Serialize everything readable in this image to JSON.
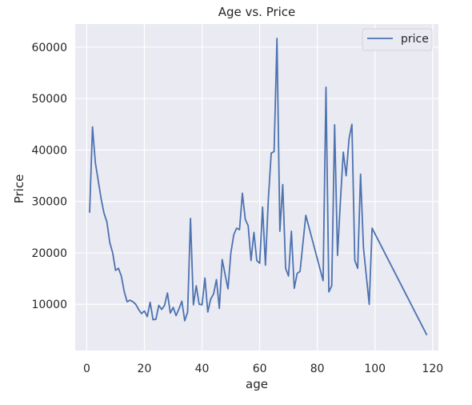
{
  "chart_data": {
    "type": "line",
    "title": "Age vs. Price",
    "xlabel": "age",
    "ylabel": "Price",
    "xlim": [
      -4,
      122
    ],
    "ylim": [
      1000,
      64500
    ],
    "xticks": [
      0,
      20,
      40,
      60,
      80,
      100,
      120
    ],
    "yticks": [
      10000,
      20000,
      30000,
      40000,
      50000,
      60000
    ],
    "grid": true,
    "legend": "top-right",
    "background": "#eaeaf2",
    "colors": {
      "series": "#4c72b0",
      "grid": "#ffffff"
    },
    "series": [
      {
        "name": "price",
        "x": [
          1,
          2,
          3,
          4,
          5,
          6,
          7,
          8,
          9,
          10,
          11,
          12,
          13,
          14,
          15,
          16,
          17,
          18,
          19,
          20,
          21,
          22,
          23,
          24,
          25,
          26,
          27,
          28,
          29,
          30,
          31,
          32,
          33,
          34,
          35,
          36,
          37,
          38,
          39,
          40,
          41,
          42,
          43,
          44,
          45,
          46,
          47,
          48,
          49,
          50,
          51,
          52,
          53,
          54,
          55,
          56,
          57,
          58,
          59,
          60,
          61,
          62,
          63,
          64,
          65,
          66,
          67,
          68,
          69,
          70,
          71,
          72,
          73,
          74,
          76,
          82,
          83,
          84,
          85,
          86,
          87,
          88,
          89,
          90,
          91,
          92,
          93,
          94,
          95,
          96,
          98,
          99,
          118
        ],
        "y": [
          27800,
          44500,
          37500,
          34000,
          30500,
          27700,
          26000,
          22000,
          20000,
          16600,
          17000,
          15500,
          12500,
          10500,
          10800,
          10500,
          10000,
          9000,
          8200,
          8700,
          7600,
          10400,
          7000,
          7100,
          9800,
          9000,
          9800,
          12200,
          8300,
          9400,
          7800,
          9100,
          10600,
          6800,
          8500,
          26700,
          9900,
          13600,
          10000,
          9900,
          15100,
          8500,
          11000,
          12000,
          14800,
          9200,
          18700,
          15800,
          13000,
          20000,
          23500,
          24800,
          24500,
          31600,
          26500,
          25300,
          18500,
          24000,
          18500,
          18000,
          28900,
          17600,
          30400,
          39400,
          39700,
          61700,
          24200,
          33300,
          17000,
          15500,
          24200,
          13100,
          16000,
          16400,
          27300,
          14600,
          52200,
          12400,
          13600,
          44900,
          19500,
          30000,
          39600,
          35000,
          42200,
          45000,
          18500,
          17000,
          35300,
          21000,
          10000,
          24800,
          4000
        ]
      }
    ]
  }
}
